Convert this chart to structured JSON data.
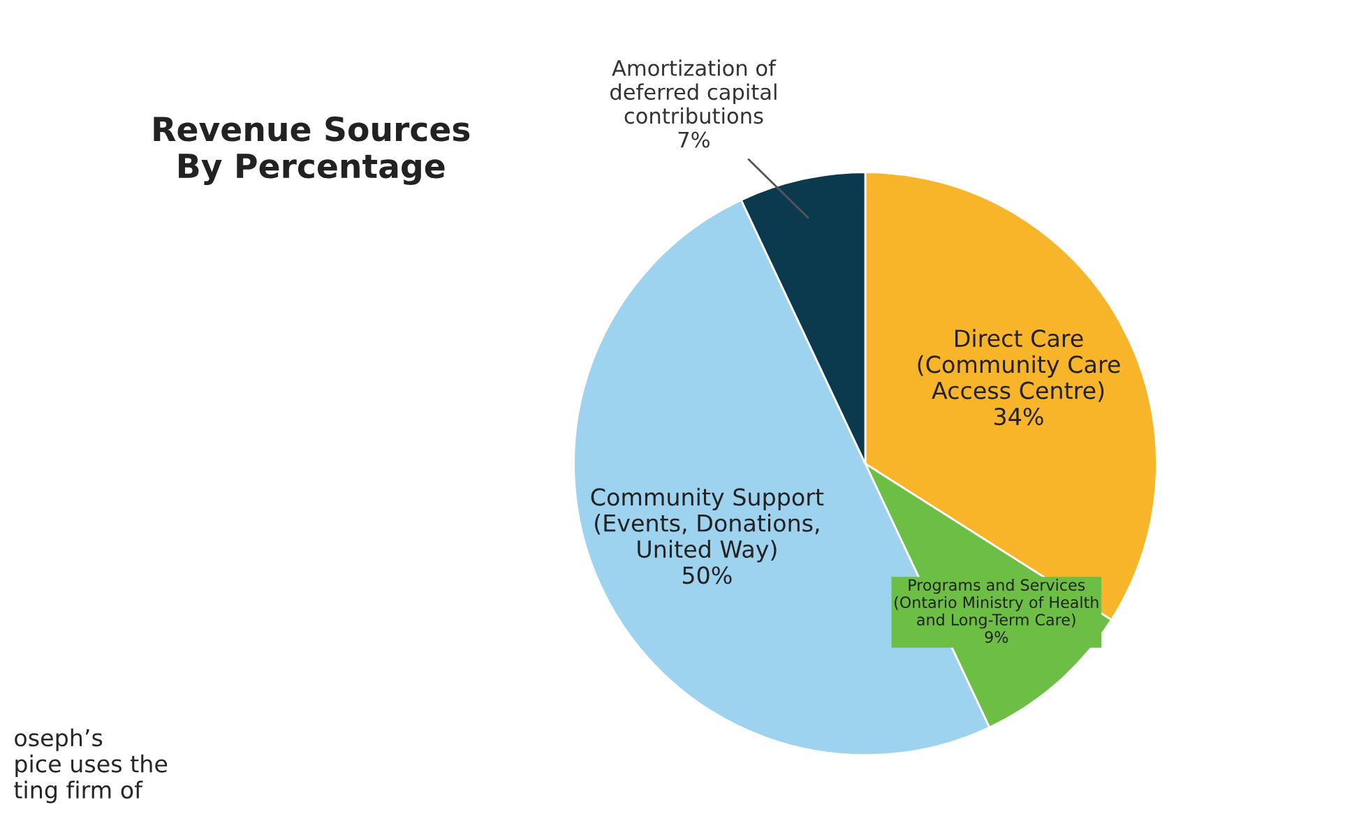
{
  "chart_data": {
    "type": "pie",
    "title": "Revenue Sources\nBy Percentage",
    "categories": [
      "Direct Care\n(Community Care\nAccess Centre)",
      "Programs and Services\n(Ontario Ministry of Health\nand Long-Term Care)",
      "Community Support\n(Events, Donations,\nUnited Way)",
      "Amortization of\ndeferred capital\ncontributions"
    ],
    "values": [
      34,
      9,
      50,
      7
    ],
    "value_labels": [
      "34%",
      "9%",
      "50%",
      "7%"
    ],
    "colors": [
      "#f9b52a",
      "#6cbf44",
      "#9ed3f0",
      "#0b3a4f"
    ],
    "annotations": [
      "oseph’s\npice uses the\nting firm of"
    ]
  }
}
